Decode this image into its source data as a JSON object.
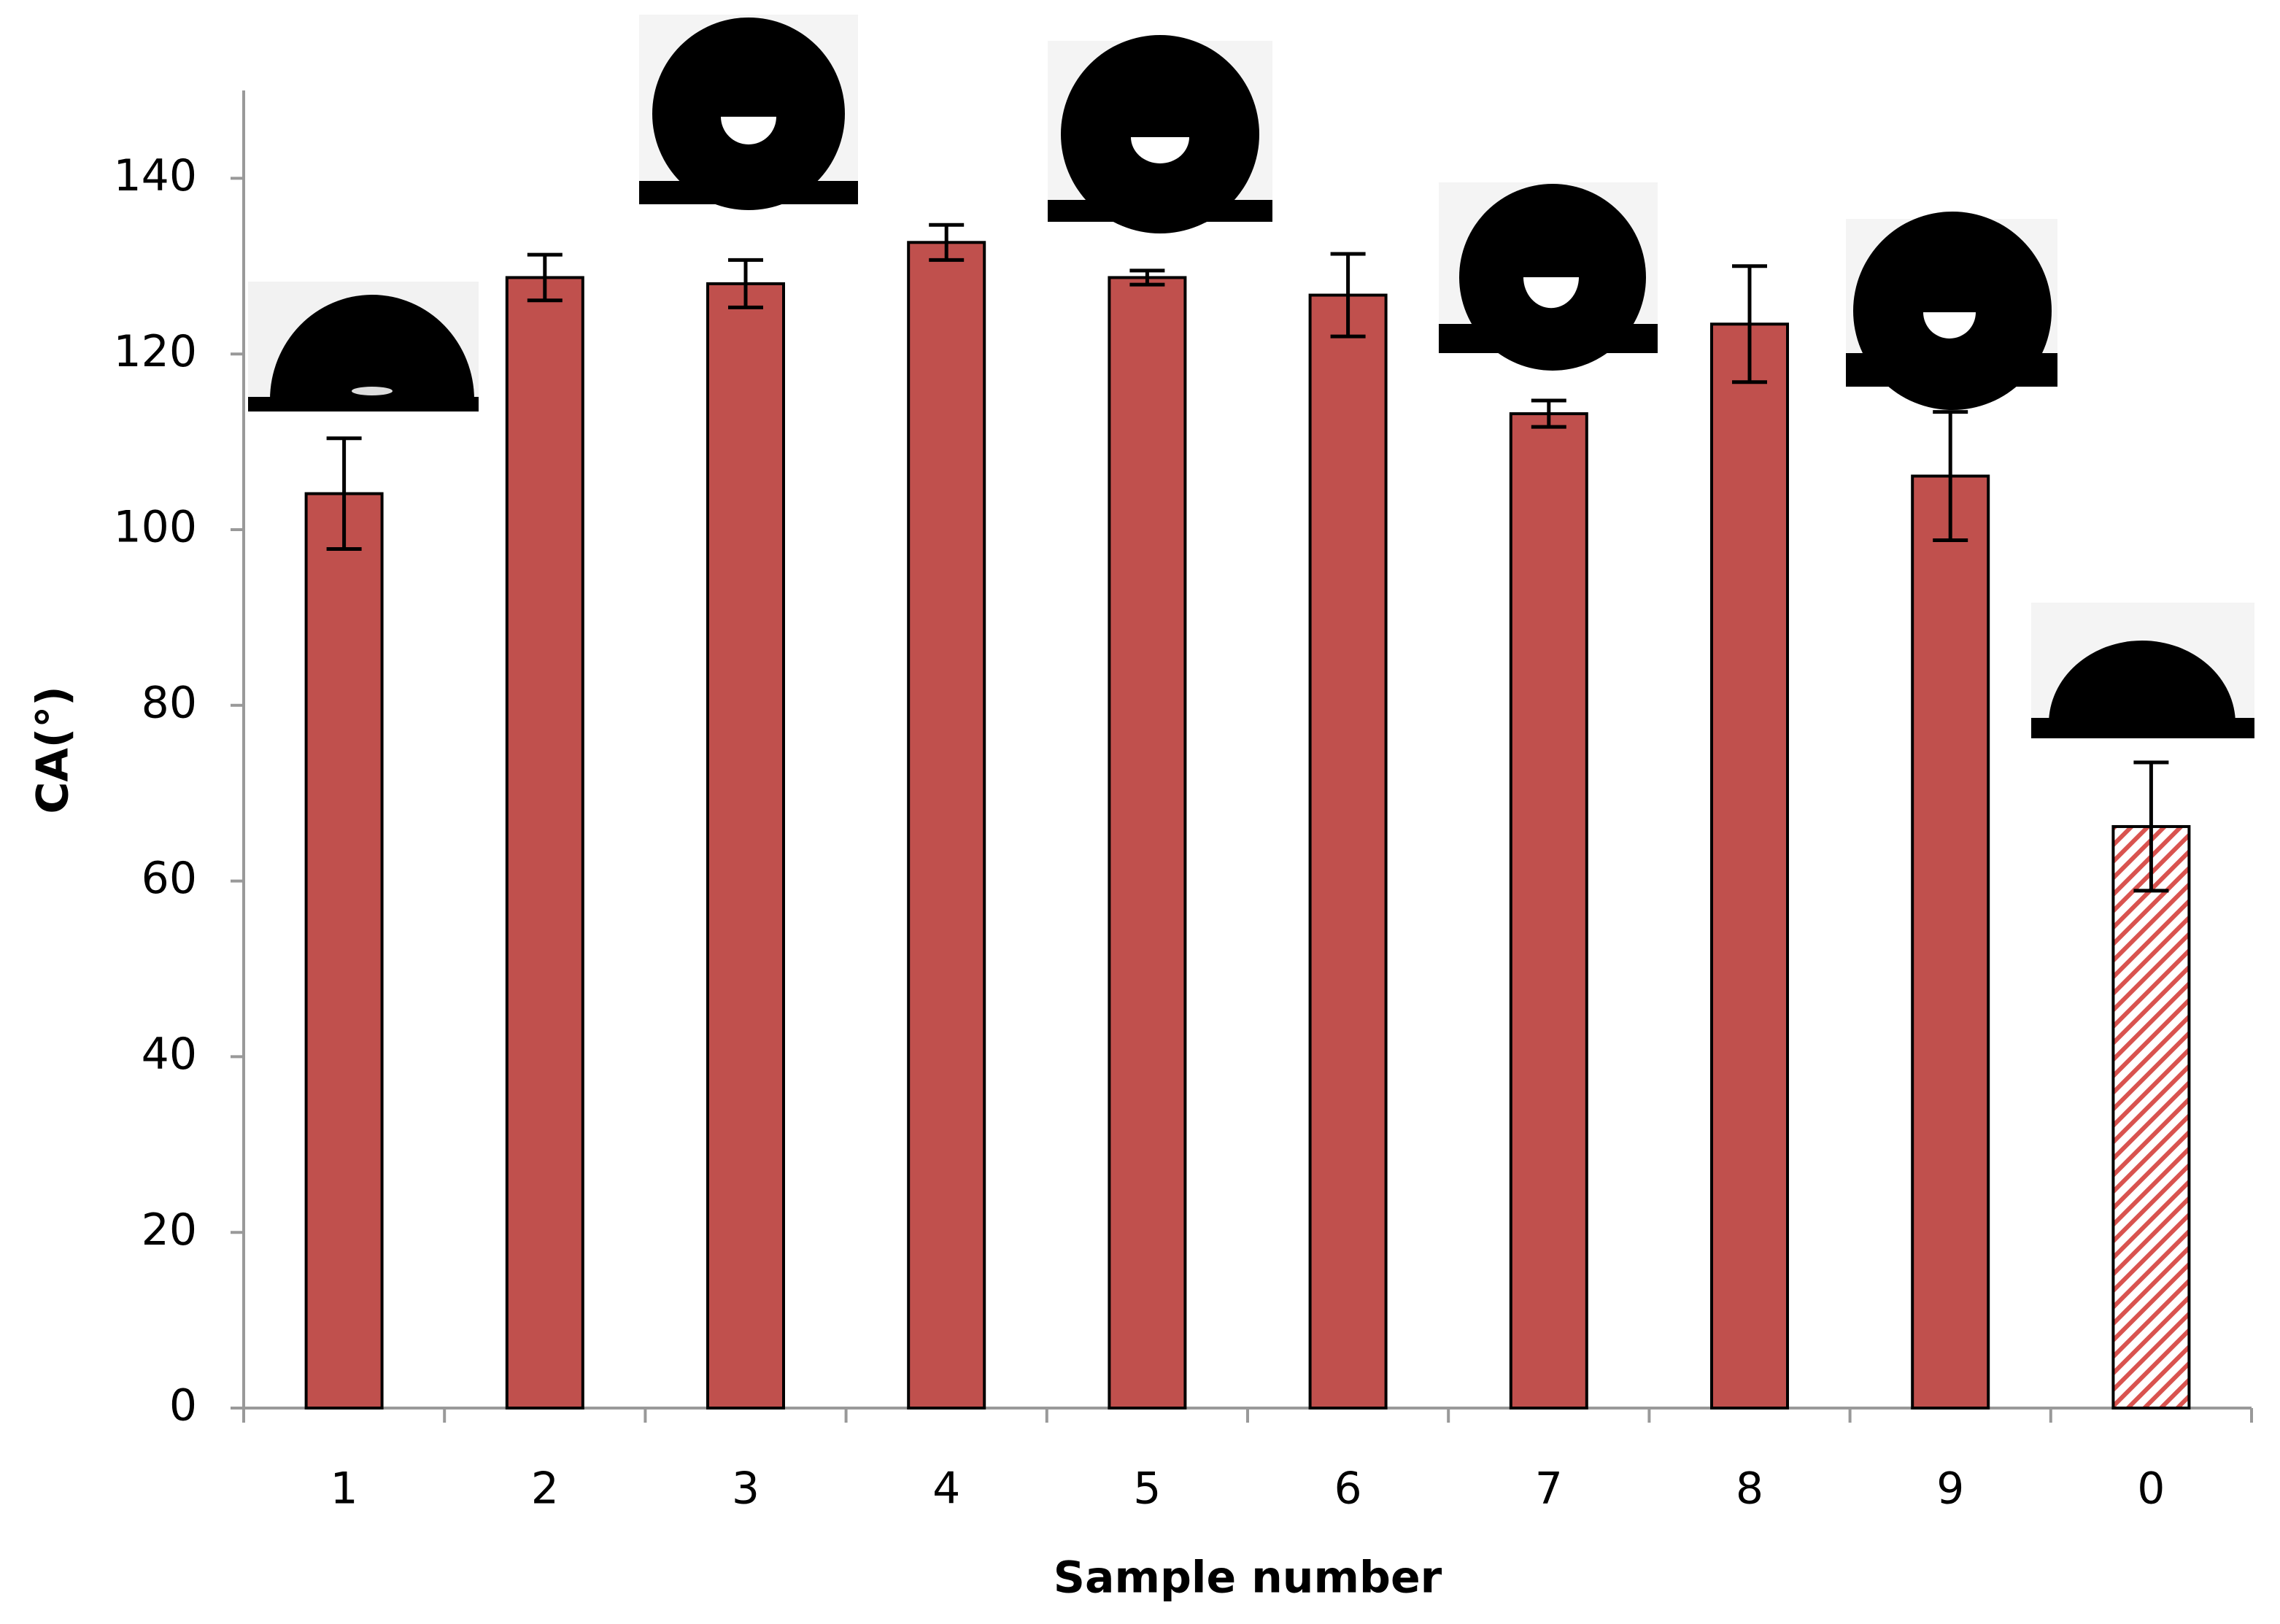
{
  "chart_data": {
    "type": "bar",
    "x_label": "Sample number",
    "y_label": "CA(°)",
    "categories": [
      "1",
      "2",
      "3",
      "4",
      "5",
      "6",
      "7",
      "8",
      "9",
      "0"
    ],
    "values": [
      104.1,
      128.7,
      128.0,
      132.7,
      128.7,
      126.7,
      113.2,
      123.4,
      106.1,
      66.2
    ],
    "errors": [
      6.3,
      2.6,
      2.7,
      2.0,
      0.8,
      4.7,
      1.5,
      6.6,
      7.3,
      7.3
    ],
    "bar_styles": [
      "solid",
      "solid",
      "solid",
      "solid",
      "solid",
      "solid",
      "solid",
      "solid",
      "solid",
      "hatch"
    ],
    "color": "#c0504d",
    "ylim": [
      0,
      150
    ],
    "yticks": [
      0,
      20,
      40,
      60,
      80,
      100,
      120,
      140
    ],
    "grid": false
  }
}
